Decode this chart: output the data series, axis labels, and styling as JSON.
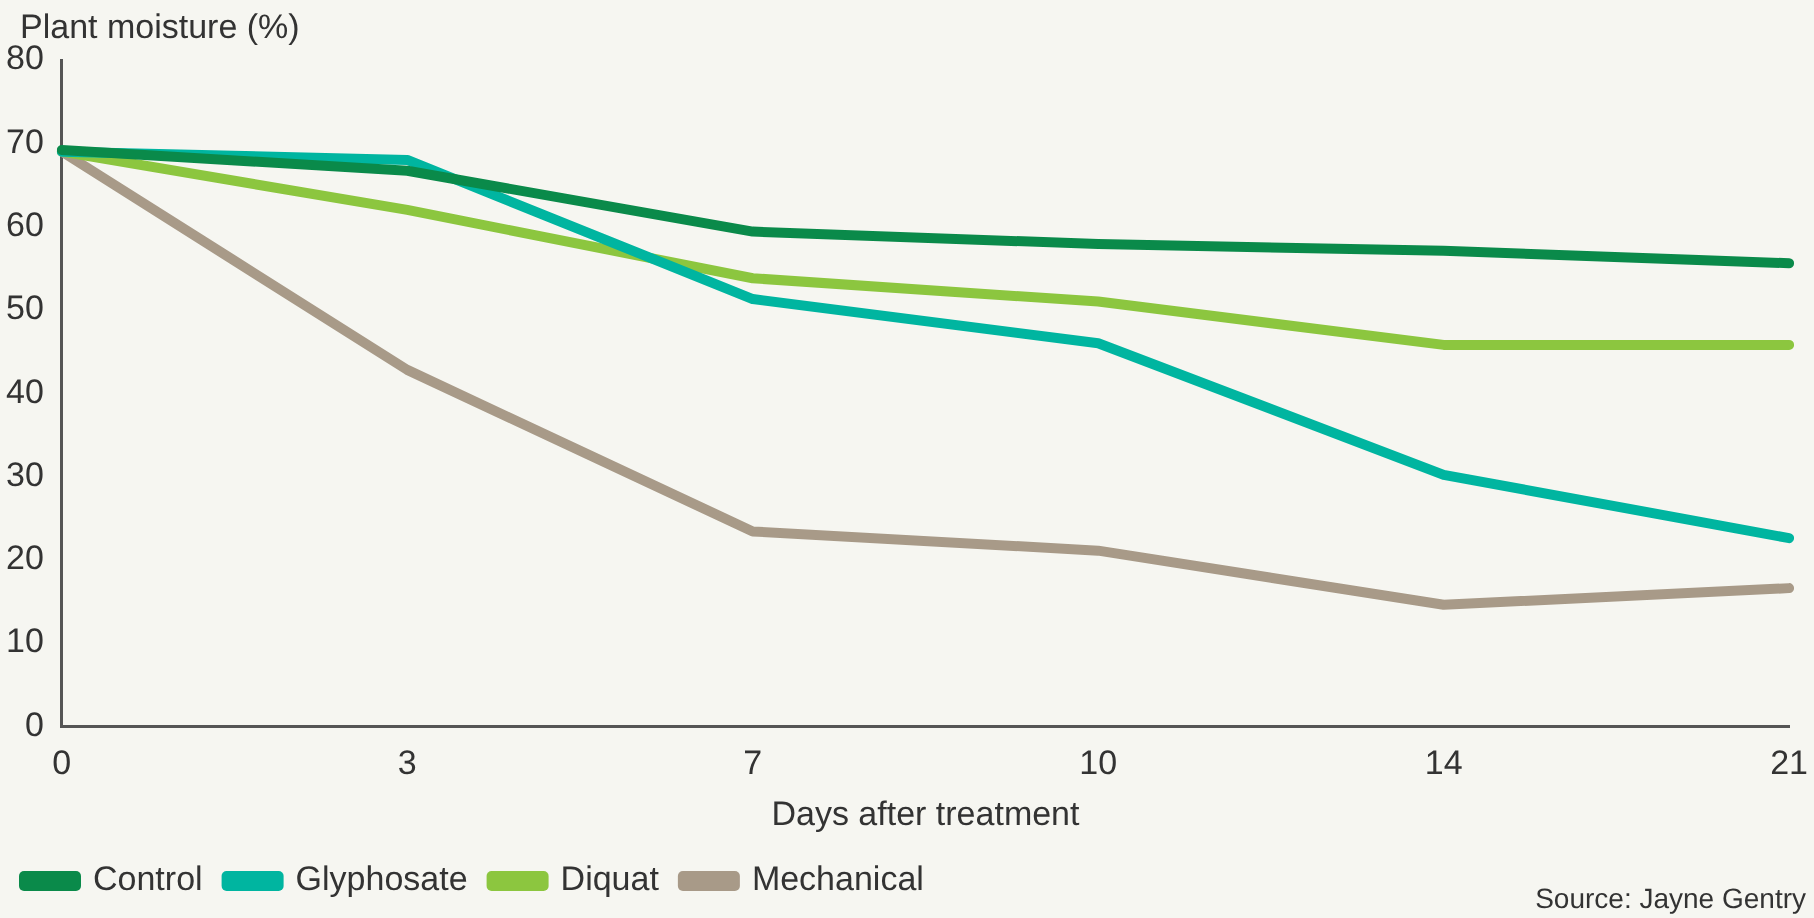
{
  "chart_data": {
    "type": "line",
    "ylabel": "Plant moisture (%)",
    "xlabel": "Days after treatment",
    "categories": [
      "0",
      "3",
      "7",
      "10",
      "14",
      "21"
    ],
    "series": [
      {
        "name": "Control",
        "color": "#0a8a4a",
        "values": [
          69.2,
          66.7,
          59.4,
          57.9,
          57.1,
          55.6
        ]
      },
      {
        "name": "Glyphosate",
        "color": "#00b5a0",
        "values": [
          69,
          68,
          51.3,
          46,
          30.2,
          22.6
        ]
      },
      {
        "name": "Diquat",
        "color": "#8cc63f",
        "values": [
          69,
          62,
          53.8,
          51,
          45.8,
          45.8
        ]
      },
      {
        "name": "Mechanical",
        "color": "#a89a88",
        "values": [
          69,
          42.8,
          23.4,
          21.1,
          14.6,
          16.6
        ]
      }
    ],
    "ylim": [
      0,
      80
    ],
    "yticks": [
      0,
      10,
      20,
      30,
      40,
      50,
      60,
      70,
      80
    ],
    "grid": false,
    "legend": "bottom left",
    "marker": "none",
    "line_style": "solid",
    "annotations": [
      "Source: Jayne Gentry"
    ]
  }
}
